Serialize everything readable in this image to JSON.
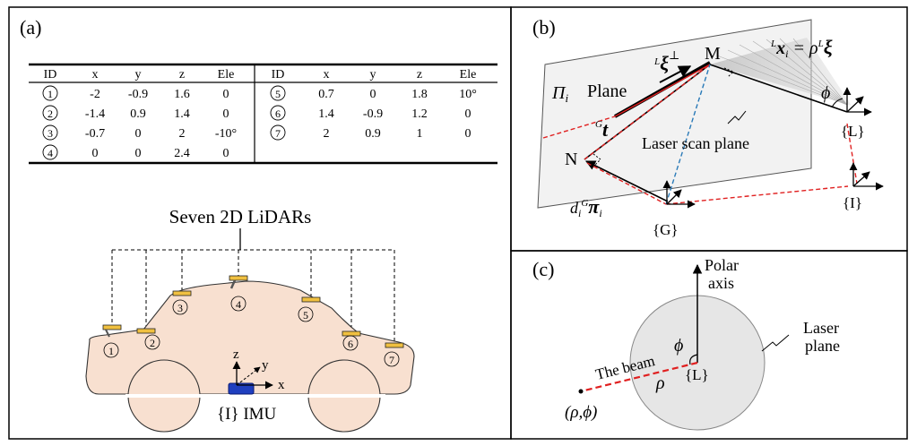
{
  "panel_a": {
    "label": "(a)",
    "table": {
      "headers": [
        "ID",
        "x",
        "y",
        "z",
        "Ele"
      ],
      "left_rows": [
        [
          "1",
          "-2",
          "-0.9",
          "1.6",
          "0"
        ],
        [
          "2",
          "-1.4",
          "0.9",
          "1.4",
          "0"
        ],
        [
          "3",
          "-0.7",
          "0",
          "2",
          "-10°"
        ],
        [
          "4",
          "0",
          "0",
          "2.4",
          "0"
        ]
      ],
      "right_rows": [
        [
          "5",
          "0.7",
          "0",
          "1.8",
          "10°"
        ],
        [
          "6",
          "1.4",
          "-0.9",
          "1.2",
          "0"
        ],
        [
          "7",
          "2",
          "0.9",
          "1",
          "0"
        ]
      ]
    },
    "lidars_title": "Seven 2D LiDARs",
    "lidar_numbers": [
      "1",
      "2",
      "3",
      "4",
      "5",
      "6",
      "7"
    ],
    "axis_z": "z",
    "axis_y": "y",
    "axis_x": "x",
    "imu_label": "{I} IMU",
    "colors": {
      "car_body": "#f8e0d0",
      "lidar": "#f0c040",
      "imu": "#1f3fbf"
    }
  },
  "panel_b": {
    "label": "(b)",
    "plane_symbol": "Π",
    "plane_subscript": "i",
    "plane_word": "Plane",
    "point_M": "M",
    "point_N": "N",
    "xi_perp": {
      "pre": "L",
      "sym": "ξ",
      "sup": "⊥"
    },
    "x_eq": {
      "pre": "L",
      "sym": "x",
      "sub": "i",
      "eq": " = ρ",
      "pre2": "L",
      "sym2": "ξ"
    },
    "phi": "ϕ",
    "t_vec": {
      "pre": "G",
      "sym": "t"
    },
    "laser_scan_plane": "Laser scan plane",
    "d_pi": {
      "d": "d",
      "d_sub": "i",
      "pre": "G",
      "sym": "π",
      "sub": "i"
    },
    "frame_L": "{L}",
    "frame_G": "{G}",
    "frame_I": "{I}",
    "colors": {
      "red_dash": "#e02020",
      "blue_dash": "#2a7ab8",
      "plane_fill": "#f2f2f2"
    }
  },
  "panel_c": {
    "label": "(c)",
    "polar_axis_line1": "Polar",
    "polar_axis_line2": "axis",
    "laser_plane_line1": "Laser",
    "laser_plane_line2": "plane",
    "phi": "ϕ",
    "rho": "ρ",
    "frame_L": "{L}",
    "beam_label": "The beam",
    "coord": "(ρ,ϕ)",
    "colors": {
      "circle_fill": "#e6e6e6",
      "beam": "#e02020"
    }
  }
}
